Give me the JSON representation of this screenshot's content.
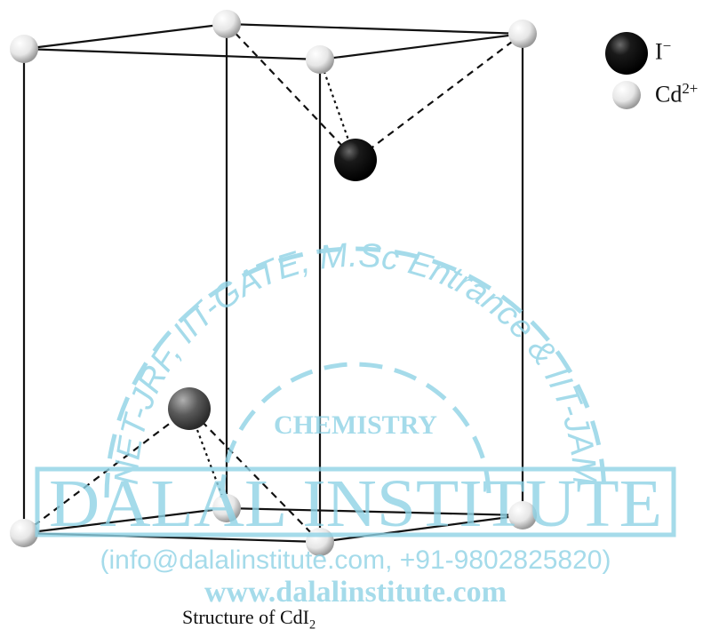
{
  "legend": {
    "iodide": {
      "symbol": "I",
      "charge": "−"
    },
    "cadmium": {
      "symbol": "Cd",
      "charge": "2+"
    }
  },
  "caption": {
    "text": "Structure of CdI",
    "subscript": "2"
  },
  "watermark": {
    "arc_text": "NET-JRF, IIT-GATE, M.Sc Entrance & IIT-JAM",
    "subject": "CHEMISTRY",
    "name": "DALAL INSTITUTE",
    "contact": "(info@dalalinstitute.com, +91-9802825820)",
    "website": "www.dalalinstitute.com"
  },
  "colors": {
    "iodide": "#111111",
    "cadmium": "#e8e8e8",
    "watermark": "#8fd3e6"
  }
}
